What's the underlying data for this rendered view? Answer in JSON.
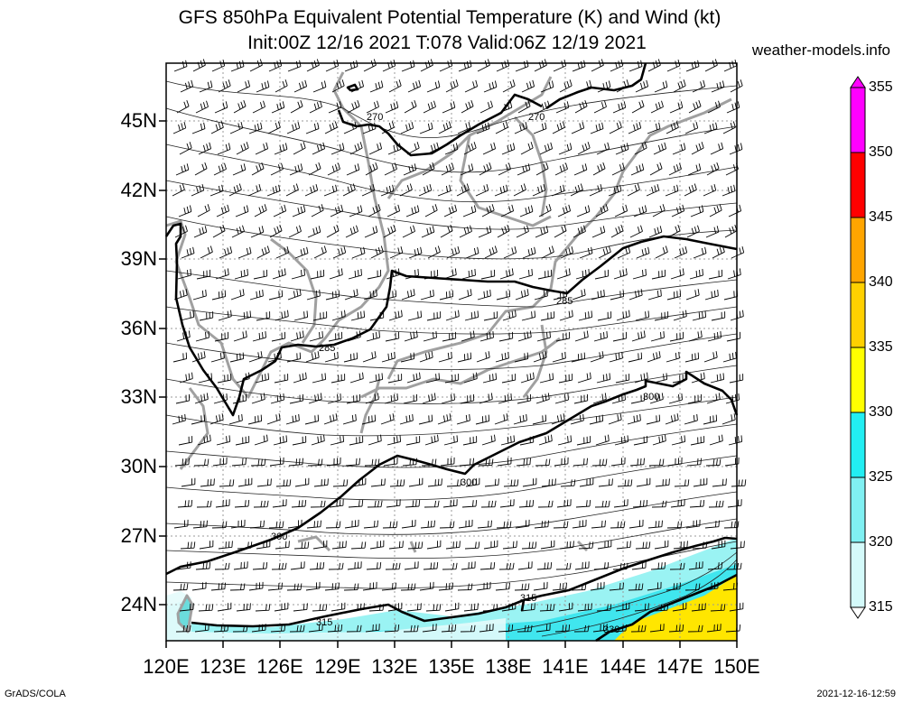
{
  "title": {
    "line1": "GFS 850hPa Equivalent Potential Temperature (K) and Wind (kt)",
    "line2": "Init:00Z 12/16 2021 T:078 Valid:06Z 12/19 2021",
    "site": "weather-models.info"
  },
  "map": {
    "lat_labels": [
      "45N",
      "42N",
      "39N",
      "36N",
      "33N",
      "30N",
      "27N",
      "24N"
    ],
    "lon_labels": [
      "120E",
      "123E",
      "126E",
      "129E",
      "132E",
      "135E",
      "138E",
      "141E",
      "144E",
      "147E",
      "150E"
    ],
    "contour_labels": [
      "270",
      "270",
      "285",
      "285",
      "300",
      "300",
      "300",
      "315",
      "330"
    ]
  },
  "colorbar": {
    "labels": [
      "355",
      "350",
      "345",
      "340",
      "335",
      "330",
      "325",
      "320",
      "315"
    ],
    "colors": [
      "#ff00ff",
      "#ff0a8c",
      "#ff0000",
      "#ffa500",
      "#ffd500",
      "#ffff00",
      "#00ffff",
      "#40e8ee",
      "#9ef4f4",
      "#d8fbfb",
      "#ffffff"
    ]
  },
  "footer": {
    "left": "GrADS/COLA",
    "right": "2021-12-16-12:59"
  }
}
